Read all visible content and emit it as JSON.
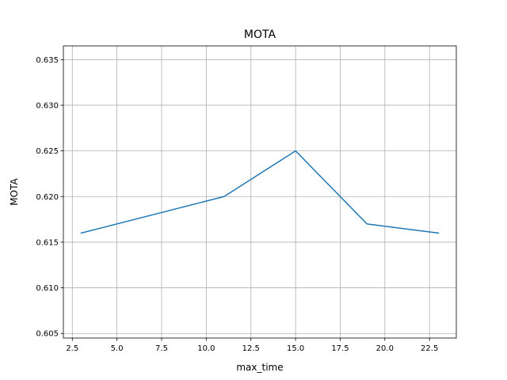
{
  "chart_data": {
    "type": "line",
    "title": "MOTA",
    "xlabel": "max_time",
    "ylabel": "MOTA",
    "x": [
      3,
      11,
      15,
      19,
      23
    ],
    "series": [
      {
        "values": [
          0.616,
          0.62,
          0.625,
          0.617,
          0.616
        ],
        "color": "#1f77b4"
      }
    ],
    "xlim": [
      2.0,
      24.0
    ],
    "ylim": [
      0.6045,
      0.6365
    ],
    "xticks": [
      2.5,
      5.0,
      7.5,
      10.0,
      12.5,
      15.0,
      17.5,
      20.0,
      22.5
    ],
    "xtick_labels": [
      "2.5",
      "5.0",
      "7.5",
      "10.0",
      "12.5",
      "15.0",
      "17.5",
      "20.0",
      "22.5"
    ],
    "yticks": [
      0.605,
      0.61,
      0.615,
      0.62,
      0.625,
      0.63,
      0.635
    ],
    "ytick_labels": [
      "0.605",
      "0.610",
      "0.615",
      "0.620",
      "0.625",
      "0.630",
      "0.635"
    ],
    "grid": true,
    "grid_color": "#b0b0b0"
  }
}
